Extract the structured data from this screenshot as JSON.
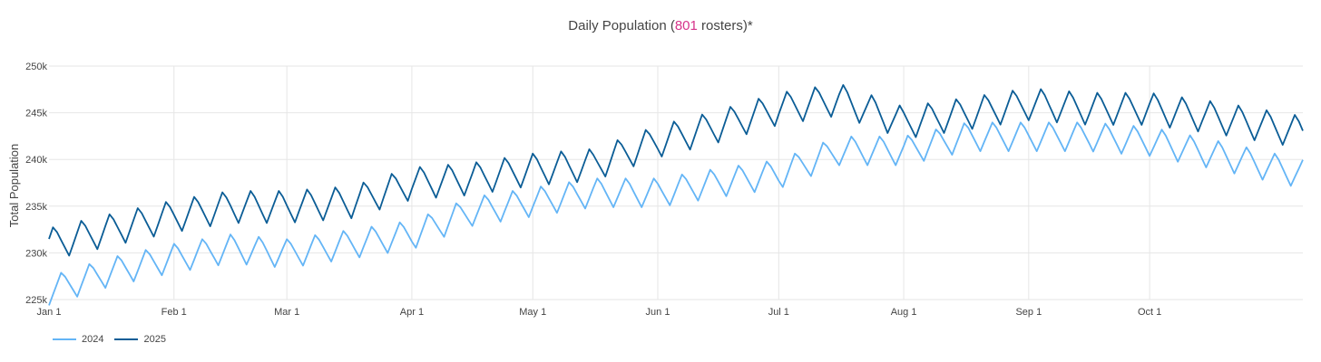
{
  "title": {
    "prefix": "Daily Population (",
    "highlight": "801",
    "suffix": " rosters)*"
  },
  "chart_data": {
    "type": "line",
    "title": "Daily Population (801 rosters)*",
    "xlabel": "",
    "ylabel": "Total Population",
    "ylim": [
      225000,
      250000
    ],
    "y_ticks": [
      225000,
      230000,
      235000,
      240000,
      245000,
      250000
    ],
    "y_tick_labels": [
      "225k",
      "230k",
      "235k",
      "240k",
      "245k",
      "250k"
    ],
    "x_ticks": [
      "Jan 1",
      "Feb 1",
      "Mar 1",
      "Apr 1",
      "May 1",
      "Jun 1",
      "Jul 1",
      "Aug 1",
      "Sep 1",
      "Oct 1"
    ],
    "x_tick_days": [
      0,
      31,
      59,
      90,
      120,
      151,
      181,
      212,
      243,
      273
    ],
    "x_range_days": [
      0,
      311
    ],
    "grid": true,
    "legend_position": "bottom-left",
    "series": [
      {
        "name": "2024",
        "color": "#64b5f6",
        "anchors": [
          [
            0,
            226000
          ],
          [
            15,
            228000
          ],
          [
            31,
            229500
          ],
          [
            45,
            230500
          ],
          [
            59,
            230000
          ],
          [
            75,
            231000
          ],
          [
            90,
            232000
          ],
          [
            105,
            234500
          ],
          [
            120,
            235500
          ],
          [
            135,
            236500
          ],
          [
            151,
            236500
          ],
          [
            165,
            237500
          ],
          [
            181,
            238500
          ],
          [
            196,
            241000
          ],
          [
            212,
            241000
          ],
          [
            228,
            242500
          ],
          [
            243,
            242500
          ],
          [
            258,
            242500
          ],
          [
            273,
            242000
          ],
          [
            290,
            240500
          ],
          [
            311,
            238500
          ]
        ],
        "amplitude": 1800
      },
      {
        "name": "2025",
        "color": "#0b5d96",
        "anchors": [
          [
            0,
            231000
          ],
          [
            15,
            232500
          ],
          [
            31,
            234000
          ],
          [
            45,
            235000
          ],
          [
            59,
            235000
          ],
          [
            75,
            235500
          ],
          [
            90,
            237500
          ],
          [
            105,
            238000
          ],
          [
            120,
            239000
          ],
          [
            135,
            239500
          ],
          [
            151,
            242000
          ],
          [
            165,
            243500
          ],
          [
            181,
            245500
          ],
          [
            196,
            246500
          ],
          [
            212,
            244000
          ],
          [
            228,
            245000
          ],
          [
            243,
            246000
          ],
          [
            258,
            245500
          ],
          [
            273,
            245500
          ],
          [
            290,
            244500
          ],
          [
            311,
            243000
          ]
        ],
        "amplitude": 2000
      }
    ]
  }
}
